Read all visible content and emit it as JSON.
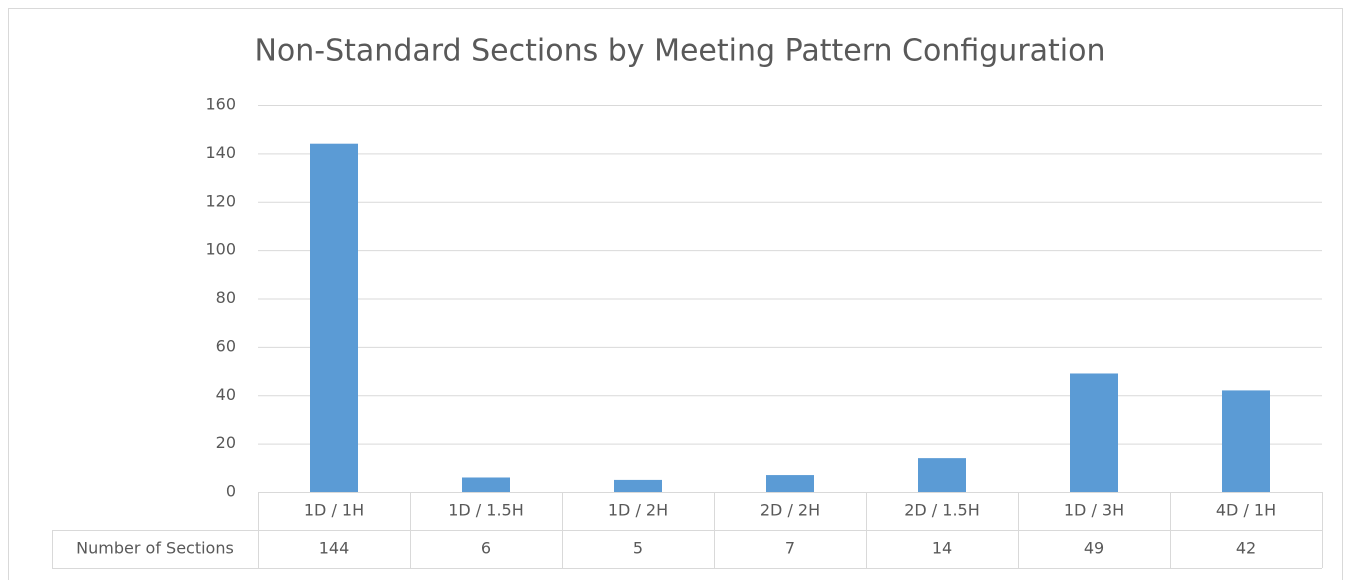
{
  "chart_data": {
    "type": "bar",
    "title": "Non-Standard Sections by Meeting Pattern Configuration",
    "categories": [
      "1D / 1H",
      "1D / 1.5H",
      "1D / 2H",
      "2D / 2H",
      "2D / 1.5H",
      "1D / 3H",
      "4D / 1H"
    ],
    "series": [
      {
        "name": "Number of Sections",
        "color": "#5b9bd5",
        "values": [
          144,
          6,
          5,
          7,
          14,
          49,
          42
        ]
      }
    ],
    "ylim": [
      0,
      160
    ],
    "yticks": [
      0,
      20,
      40,
      60,
      80,
      100,
      120,
      140,
      160
    ],
    "grid": true
  }
}
